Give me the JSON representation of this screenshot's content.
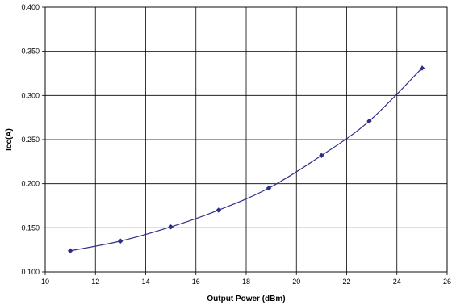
{
  "chart_data": {
    "type": "line",
    "xlabel": "Output Power (dBm)",
    "ylabel": "Icc(A)",
    "xlim": [
      10,
      26
    ],
    "ylim": [
      0.1,
      0.4
    ],
    "x_ticks": [
      10,
      12,
      14,
      16,
      18,
      20,
      22,
      24,
      26
    ],
    "y_ticks": [
      0.1,
      0.15,
      0.2,
      0.25,
      0.3,
      0.35,
      0.4
    ],
    "x_tick_labels": [
      "10",
      "12",
      "14",
      "16",
      "18",
      "20",
      "22",
      "24",
      "26"
    ],
    "y_tick_labels": [
      "0.100",
      "0.150",
      "0.200",
      "0.250",
      "0.300",
      "0.350",
      "0.400"
    ],
    "grid": true,
    "series": [
      {
        "color": "#2e2e86",
        "marker": "diamond",
        "x": [
          11.0,
          13.0,
          15.0,
          16.9,
          18.9,
          21.0,
          22.9,
          25.0
        ],
        "y": [
          0.124,
          0.135,
          0.151,
          0.17,
          0.195,
          0.232,
          0.271,
          0.331
        ]
      }
    ]
  }
}
